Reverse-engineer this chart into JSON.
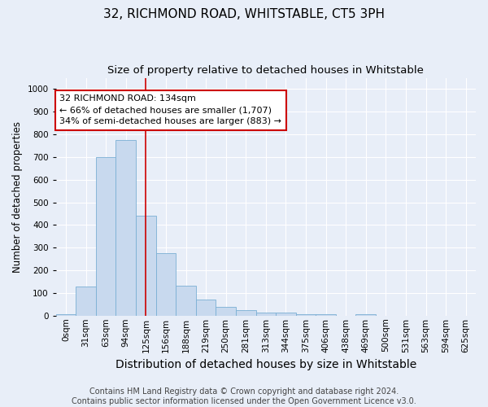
{
  "title": "32, RICHMOND ROAD, WHITSTABLE, CT5 3PH",
  "subtitle": "Size of property relative to detached houses in Whitstable",
  "xlabel": "Distribution of detached houses by size in Whitstable",
  "ylabel": "Number of detached properties",
  "footnote1": "Contains HM Land Registry data © Crown copyright and database right 2024.",
  "footnote2": "Contains public sector information licensed under the Open Government Licence v3.0.",
  "bar_labels": [
    "0sqm",
    "31sqm",
    "63sqm",
    "94sqm",
    "125sqm",
    "156sqm",
    "188sqm",
    "219sqm",
    "250sqm",
    "281sqm",
    "313sqm",
    "344sqm",
    "375sqm",
    "406sqm",
    "438sqm",
    "469sqm",
    "500sqm",
    "531sqm",
    "563sqm",
    "594sqm",
    "625sqm"
  ],
  "bar_values": [
    7,
    128,
    700,
    775,
    440,
    275,
    133,
    70,
    40,
    25,
    12,
    12,
    8,
    5,
    0,
    8,
    0,
    0,
    0,
    0,
    0
  ],
  "bar_color": "#c8d9ee",
  "bar_edge_color": "#7aafd4",
  "vline_x": 4.5,
  "vline_color": "#cc0000",
  "annotation_line1": "32 RICHMOND ROAD: 134sqm",
  "annotation_line2": "← 66% of detached houses are smaller (1,707)",
  "annotation_line3": "34% of semi-detached houses are larger (883) →",
  "annotation_box_color": "white",
  "annotation_box_edge": "#cc0000",
  "ylim": [
    0,
    1050
  ],
  "yticks": [
    0,
    100,
    200,
    300,
    400,
    500,
    600,
    700,
    800,
    900,
    1000
  ],
  "background_color": "#e8eef8",
  "plot_bg_color": "#e8eef8",
  "grid_color": "#ffffff",
  "title_fontsize": 11,
  "subtitle_fontsize": 9.5,
  "xlabel_fontsize": 10,
  "ylabel_fontsize": 8.5,
  "tick_fontsize": 7.5,
  "annotation_fontsize": 8,
  "footnote_fontsize": 7
}
